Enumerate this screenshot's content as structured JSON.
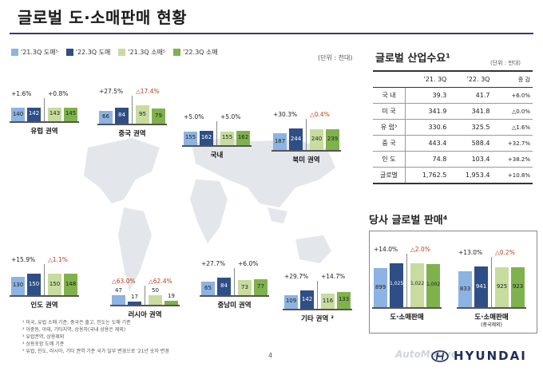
{
  "title": "글로벌 도·소매판매 현황",
  "legend": [
    {
      "label": "'21.3Q 도매⁵",
      "color": "#8db3e2"
    },
    {
      "label": "'22.3Q 도매",
      "color": "#2e4e86"
    },
    {
      "label": "'21.3Q 소매⁵",
      "color": "#c7dc9e"
    },
    {
      "label": "'22.3Q 소매",
      "color": "#7fb24d"
    }
  ],
  "unit_left": "(단위 : 천대)",
  "chart_data": [
    {
      "type": "bar",
      "region": "유럽 권역",
      "categories": [
        "'21.3Q 도매",
        "'22.3Q 도매",
        "'21.3Q 소매",
        "'22.3Q 소매"
      ],
      "values": [
        140,
        142,
        143,
        145
      ],
      "value_labels": [
        "140",
        "142",
        "143",
        "145"
      ],
      "wholesale_change": "+1.6%",
      "retail_change": "+0.8%"
    },
    {
      "type": "bar",
      "region": "중국 권역",
      "categories": [
        "'21.3Q 도매",
        "'22.3Q 도매",
        "'21.3Q 소매",
        "'22.3Q 소매"
      ],
      "values": [
        66,
        84,
        95,
        79
      ],
      "value_labels": [
        "66",
        "84",
        "95",
        "79"
      ],
      "wholesale_change": "+27.5%",
      "retail_change": "△17.4%"
    },
    {
      "type": "bar",
      "region": "국내",
      "categories": [
        "'21.3Q 도매",
        "'22.3Q 도매",
        "'21.3Q 소매",
        "'22.3Q 소매"
      ],
      "values": [
        155,
        162,
        155,
        162
      ],
      "value_labels": [
        "155",
        "162",
        "155",
        "162"
      ],
      "wholesale_change": "+5.0%",
      "retail_change": "+5.0%"
    },
    {
      "type": "bar",
      "region": "북미 권역",
      "categories": [
        "'21.3Q 도매",
        "'22.3Q 도매",
        "'21.3Q 소매",
        "'22.3Q 소매"
      ],
      "values": [
        187,
        244,
        240,
        239
      ],
      "value_labels": [
        "187",
        "244",
        "240",
        "239"
      ],
      "wholesale_change": "+30.3%",
      "retail_change": "△0.4%"
    },
    {
      "type": "bar",
      "region": "인도 권역",
      "categories": [
        "'21.3Q 도매",
        "'22.3Q 도매",
        "'21.3Q 소매",
        "'22.3Q 소매"
      ],
      "values": [
        130,
        150,
        150,
        148
      ],
      "value_labels": [
        "130",
        "150",
        "150",
        "148"
      ],
      "wholesale_change": "+15.9%",
      "retail_change": "△1.1%"
    },
    {
      "type": "bar",
      "region": "러시아 권역",
      "categories": [
        "'21.3Q 도매",
        "'22.3Q 도매",
        "'21.3Q 소매",
        "'22.3Q 소매"
      ],
      "values": [
        47,
        17,
        50,
        19
      ],
      "value_labels": [
        "47",
        "17",
        "50",
        "19"
      ],
      "wholesale_change": "△63.0%",
      "retail_change": "△62.4%"
    },
    {
      "type": "bar",
      "region": "중남미 권역",
      "categories": [
        "'21.3Q 도매",
        "'22.3Q 도매",
        "'21.3Q 소매",
        "'22.3Q 소매"
      ],
      "values": [
        65,
        84,
        73,
        77
      ],
      "value_labels": [
        "65",
        "84",
        "73",
        "77"
      ],
      "wholesale_change": "+27.7%",
      "retail_change": "+6.0%"
    },
    {
      "type": "bar",
      "region": "기타 권역 ²",
      "categories": [
        "'21.3Q 도매",
        "'22.3Q 도매",
        "'21.3Q 소매",
        "'22.3Q 소매"
      ],
      "values": [
        109,
        142,
        116,
        133
      ],
      "value_labels": [
        "109",
        "142",
        "116",
        "133"
      ],
      "wholesale_change": "+29.7%",
      "retail_change": "+14.7%"
    },
    {
      "type": "bar",
      "region": "도·소매판매",
      "categories": [
        "'21.3Q 도매",
        "'22.3Q 도매",
        "'21.3Q 소매",
        "'22.3Q 소매"
      ],
      "values": [
        899,
        1025,
        1022,
        1002
      ],
      "value_labels": [
        "899",
        "1,025",
        "1,022",
        "1,002"
      ],
      "wholesale_change": "+14.0%",
      "retail_change": "△2.0%"
    },
    {
      "type": "bar",
      "region": "도·소매판매",
      "region_note": "(중국제외)",
      "categories": [
        "'21.3Q 도매",
        "'22.3Q 도매",
        "'21.3Q 소매",
        "'22.3Q 소매"
      ],
      "values": [
        833,
        941,
        925,
        923
      ],
      "value_labels": [
        "833",
        "941",
        "925",
        "923"
      ],
      "wholesale_change": "+13.0%",
      "retail_change": "△0.2%"
    }
  ],
  "demand": {
    "title": "글로벌 산업수요¹",
    "unit": "(단위 : 만대)",
    "headers": [
      "",
      "'21. 3Q",
      "'22. 3Q",
      "증 감"
    ],
    "rows": [
      [
        "국 내",
        "39.3",
        "41.7",
        "+6.0%"
      ],
      [
        "미 국",
        "341.9",
        "341.8",
        "△0.0%"
      ],
      [
        "유 럽³",
        "330.6",
        "325.5",
        "△1.6%"
      ],
      [
        "중 국",
        "443.4",
        "588.4",
        "+32.7%"
      ],
      [
        "인 도",
        "74.8",
        "103.4",
        "+38.2%"
      ],
      [
        "글로벌",
        "1,762.5",
        "1,953.4",
        "+10.8%"
      ]
    ]
  },
  "sales_title": "당사 글로벌 판매⁴",
  "footnotes": [
    "¹ 미국, 유럽 소매 기준, 중국은 출고, 인도는 도매 기준",
    "² 아중동, 아태, 기타지역, 상용차(국내 상용은 제외)",
    "³ 유럽권역, 상용제외",
    "⁴ 상용포함 도매 기준",
    "⁵ 유럽, 인도, 러시아, 기타 권역 기준 국가 일부 변경으로 '21년 숫자 변경"
  ],
  "page_number": "4",
  "logo_text": "HYUNDAI",
  "watermark": "AutoMotive",
  "colors": {
    "wholesale_21": "#8db3e2",
    "wholesale_22": "#2e4e86",
    "retail_21": "#c7dc9e",
    "retail_22": "#7fb24d",
    "negative": "#c0391b"
  }
}
